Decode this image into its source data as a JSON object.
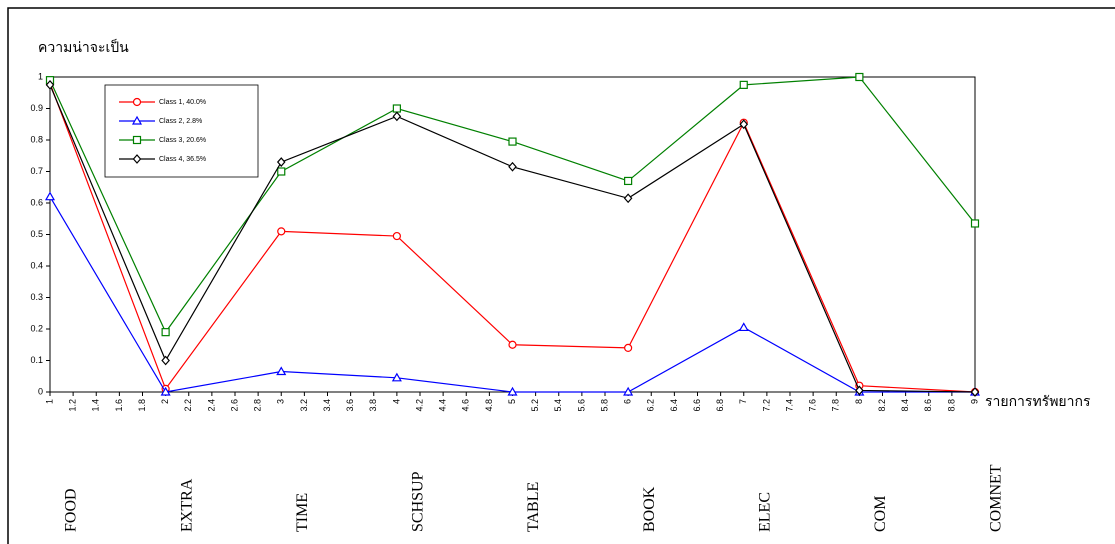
{
  "chart_data": {
    "type": "line",
    "y_label": "ความน่าจะเป็น",
    "x_label": "รายการทรัพยากร",
    "x": [
      1,
      2,
      3,
      4,
      5,
      6,
      7,
      8,
      9
    ],
    "categories": [
      "FOOD",
      "EXTRA",
      "TIME",
      "SCHSUP",
      "TABLE",
      "BOOK",
      "ELEC",
      "COM",
      "COMNET"
    ],
    "series": [
      {
        "name": "Class 1, 40.0%",
        "color": "#ff0000",
        "marker": "circle",
        "values": [
          0.98,
          0.01,
          0.51,
          0.495,
          0.15,
          0.14,
          0.855,
          0.02,
          0.0
        ]
      },
      {
        "name": "Class 2, 2.8%",
        "color": "#0000ff",
        "marker": "triangle",
        "values": [
          0.62,
          0.0,
          0.065,
          0.045,
          0.0,
          0.0,
          0.205,
          0.0,
          0.0
        ]
      },
      {
        "name": "Class 3, 20.6%",
        "color": "#008000",
        "marker": "square",
        "values": [
          0.99,
          0.19,
          0.7,
          0.9,
          0.795,
          0.67,
          0.975,
          1.0,
          0.535
        ]
      },
      {
        "name": "Class 4, 36.5%",
        "color": "#000000",
        "marker": "diamond",
        "values": [
          0.975,
          0.1,
          0.73,
          0.875,
          0.715,
          0.615,
          0.85,
          0.005,
          0.0
        ]
      }
    ],
    "xlim": [
      1,
      9
    ],
    "xticks": [
      1,
      1.2,
      1.4,
      1.6,
      1.8,
      2,
      2.2,
      2.4,
      2.6,
      2.8,
      3,
      3.2,
      3.4,
      3.6,
      3.8,
      4,
      4.2,
      4.4,
      4.6,
      4.8,
      5,
      5.2,
      5.4,
      5.6,
      5.8,
      6,
      6.2,
      6.4,
      6.6,
      6.8,
      7,
      7.2,
      7.4,
      7.6,
      7.8,
      8,
      8.2,
      8.4,
      8.6,
      8.8,
      9
    ],
    "ylim": [
      0,
      1
    ],
    "yticks": [
      0,
      0.1,
      0.2,
      0.3,
      0.4,
      0.5,
      0.6,
      0.7,
      0.8,
      0.9,
      1
    ],
    "grid": false,
    "legend": "upper left"
  }
}
